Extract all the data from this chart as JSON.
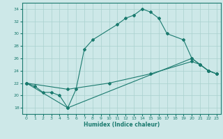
{
  "xlabel": "Humidex (Indice chaleur)",
  "bg_color": "#cde8e8",
  "line_color": "#1a7a6e",
  "grid_color": "#a8d0ce",
  "xlim": [
    -0.5,
    23.5
  ],
  "ylim": [
    17.0,
    35.0
  ],
  "yticks": [
    18,
    20,
    22,
    24,
    26,
    28,
    30,
    32,
    34
  ],
  "xticks": [
    0,
    1,
    2,
    3,
    4,
    5,
    6,
    7,
    8,
    9,
    10,
    11,
    12,
    13,
    14,
    15,
    16,
    17,
    18,
    19,
    20,
    21,
    22,
    23
  ],
  "series": [
    {
      "x": [
        0,
        1,
        2,
        3,
        4,
        5,
        6,
        7,
        8,
        11,
        12,
        13,
        14,
        15,
        16,
        17,
        19,
        20,
        21,
        22,
        23
      ],
      "y": [
        22.0,
        21.5,
        20.5,
        20.5,
        20.0,
        18.0,
        21.0,
        27.5,
        29.0,
        31.5,
        32.5,
        33.0,
        34.0,
        33.5,
        32.5,
        30.0,
        29.0,
        26.0,
        25.0,
        24.0,
        23.5
      ]
    },
    {
      "x": [
        0,
        5,
        20,
        21,
        22,
        23
      ],
      "y": [
        22.0,
        18.0,
        26.0,
        25.0,
        24.0,
        23.5
      ]
    },
    {
      "x": [
        0,
        5,
        10,
        15,
        20,
        21,
        22,
        23
      ],
      "y": [
        22.0,
        21.0,
        22.0,
        23.5,
        25.5,
        25.0,
        24.0,
        23.5
      ]
    }
  ]
}
